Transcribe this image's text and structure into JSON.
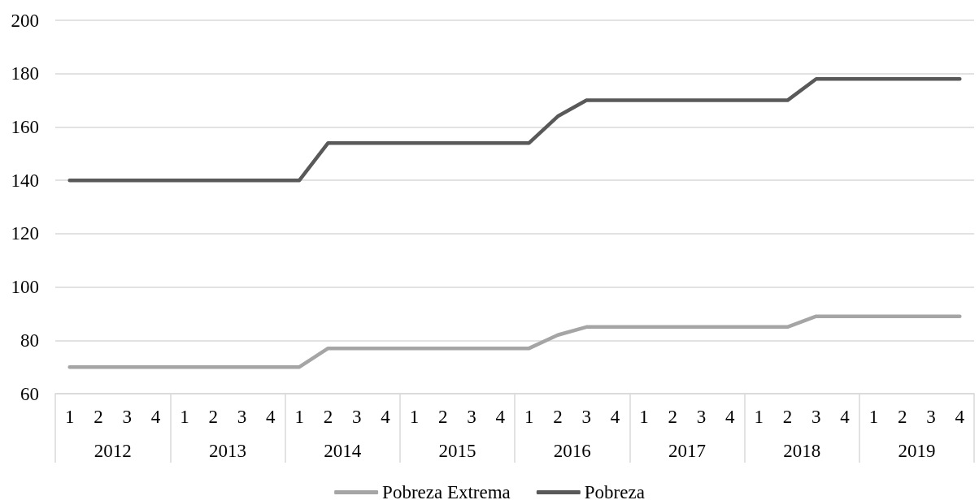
{
  "chart_data": {
    "type": "line",
    "categories": [
      "1",
      "2",
      "3",
      "4",
      "1",
      "2",
      "3",
      "4",
      "1",
      "2",
      "3",
      "4",
      "1",
      "2",
      "3",
      "4",
      "1",
      "2",
      "3",
      "4",
      "1",
      "2",
      "3",
      "4",
      "1",
      "2",
      "3",
      "4",
      "1",
      "2",
      "3",
      "4"
    ],
    "annotations": [
      "2012",
      "2013",
      "2014",
      "2015",
      "2016",
      "2017",
      "2018",
      "2019"
    ],
    "series": [
      {
        "name": "Pobreza Extrema",
        "color": "#a5a5a5",
        "values": [
          70,
          70,
          70,
          70,
          70,
          70,
          70,
          70,
          70,
          77,
          77,
          77,
          77,
          77,
          77,
          77,
          77,
          82,
          85,
          85,
          85,
          85,
          85,
          85,
          85,
          85,
          89,
          89,
          89,
          89,
          89,
          89
        ]
      },
      {
        "name": "Pobreza",
        "color": "#595959",
        "values": [
          140,
          140,
          140,
          140,
          140,
          140,
          140,
          140,
          140,
          154,
          154,
          154,
          154,
          154,
          154,
          154,
          154,
          164,
          170,
          170,
          170,
          170,
          170,
          170,
          170,
          170,
          178,
          178,
          178,
          178,
          178,
          178
        ]
      }
    ],
    "ylim": [
      60,
      200
    ],
    "yticks": [
      60,
      80,
      100,
      120,
      140,
      160,
      180,
      200
    ],
    "grid": "y",
    "legend": "bottom",
    "marker": "none",
    "line_style": "solid"
  }
}
